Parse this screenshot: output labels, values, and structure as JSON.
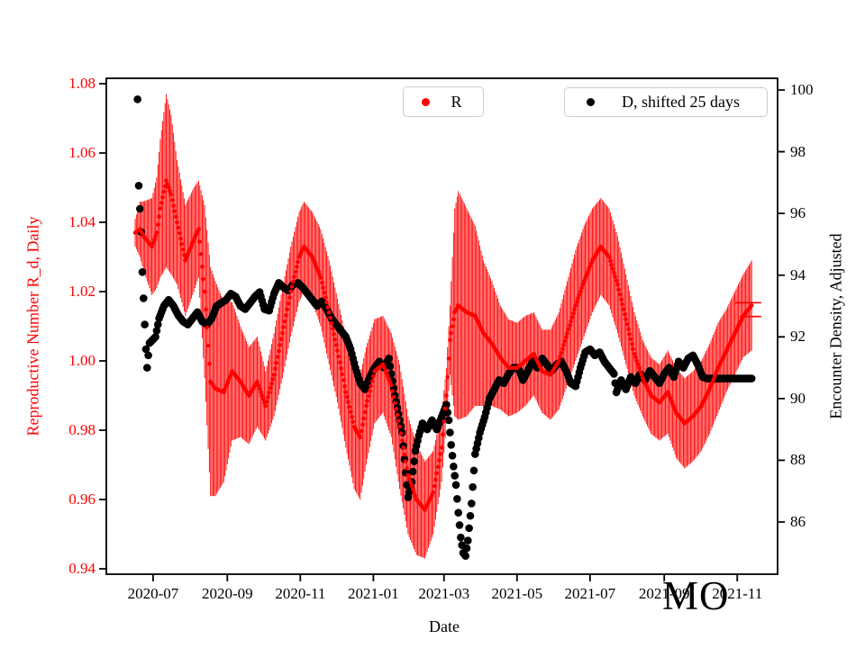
{
  "figure": {
    "watermark": "MO",
    "background": "#ffffff"
  },
  "axes": {
    "x": {
      "label": "Date",
      "color": "#000000",
      "tick_labels": [
        "2020-07",
        "2020-09",
        "2020-11",
        "2021-01",
        "2021-03",
        "2021-05",
        "2021-07",
        "2021-09",
        "2021-11"
      ],
      "tick_t": [
        15,
        77,
        138,
        199,
        258,
        319,
        380,
        442,
        503
      ]
    },
    "y_left": {
      "label": "Reproductive Number R_d, Daily",
      "color": "#ff0000",
      "tick_labels": [
        "1.08",
        "1.06",
        "1.04",
        "1.02",
        "1.00",
        "0.98",
        "0.96",
        "0.94"
      ],
      "tick_values": [
        1.08,
        1.06,
        1.04,
        1.02,
        1.0,
        0.98,
        0.96,
        0.94
      ]
    },
    "y_right": {
      "label": "Encounter Density, Adjusted",
      "color": "#000000",
      "tick_labels": [
        "100",
        "98",
        "96",
        "94",
        "92",
        "90",
        "88",
        "86"
      ],
      "tick_values": [
        100,
        98,
        96,
        94,
        92,
        90,
        88,
        86
      ]
    }
  },
  "legends": [
    {
      "label": "R",
      "marker": "point",
      "marker_color": "#ff0000"
    },
    {
      "label": "D, shifted 25 days",
      "marker": "point",
      "marker_color": "#000000"
    }
  ],
  "chart_data": {
    "type": "scatter",
    "title": "",
    "xlabel": "Date",
    "x_start_date": "2020-06-16",
    "x_unit": "days_since_start",
    "x_tick_labels": [
      "2020-07",
      "2020-09",
      "2020-11",
      "2021-01",
      "2021-03",
      "2021-05",
      "2021-07",
      "2021-09",
      "2021-11"
    ],
    "ylim_left": [
      0.938,
      1.082
    ],
    "ylim_right": [
      84.3,
      100.4
    ],
    "grid": false,
    "legend_position": "upper center",
    "series": [
      {
        "name": "R",
        "axis": "left",
        "color": "#ff0000",
        "marker": "point",
        "errorbars": true,
        "points_format": [
          "t_days",
          "value",
          "error_halfwidth"
        ],
        "points": [
          [
            0,
            1.037,
            0.004
          ],
          [
            4,
            1.038,
            0.008
          ],
          [
            7,
            1.036,
            0.01
          ],
          [
            14,
            1.033,
            0.014
          ],
          [
            18,
            1.037,
            0.016
          ],
          [
            21,
            1.044,
            0.02
          ],
          [
            26,
            1.052,
            0.025
          ],
          [
            30,
            1.048,
            0.023
          ],
          [
            35,
            1.04,
            0.018
          ],
          [
            42,
            1.029,
            0.016
          ],
          [
            49,
            1.035,
            0.015
          ],
          [
            53,
            1.038,
            0.014
          ],
          [
            58,
            1.02,
            0.025
          ],
          [
            63,
            0.994,
            0.033
          ],
          [
            67,
            0.992,
            0.031
          ],
          [
            74,
            0.991,
            0.026
          ],
          [
            81,
            0.997,
            0.02
          ],
          [
            88,
            0.994,
            0.016
          ],
          [
            95,
            0.99,
            0.014
          ],
          [
            102,
            0.994,
            0.013
          ],
          [
            109,
            0.987,
            0.01
          ],
          [
            116,
            0.996,
            0.012
          ],
          [
            123,
            1.008,
            0.013
          ],
          [
            130,
            1.02,
            0.013
          ],
          [
            137,
            1.03,
            0.013
          ],
          [
            141,
            1.033,
            0.013
          ],
          [
            148,
            1.03,
            0.013
          ],
          [
            155,
            1.024,
            0.014
          ],
          [
            162,
            1.014,
            0.015
          ],
          [
            169,
            1.003,
            0.015
          ],
          [
            176,
            0.991,
            0.016
          ],
          [
            183,
            0.981,
            0.018
          ],
          [
            188,
            0.978,
            0.018
          ],
          [
            193,
            0.987,
            0.017
          ],
          [
            200,
            0.997,
            0.015
          ],
          [
            207,
            0.999,
            0.014
          ],
          [
            214,
            0.993,
            0.015
          ],
          [
            221,
            0.981,
            0.018
          ],
          [
            228,
            0.967,
            0.017
          ],
          [
            235,
            0.96,
            0.016
          ],
          [
            242,
            0.957,
            0.014
          ],
          [
            249,
            0.962,
            0.012
          ],
          [
            256,
            0.975,
            0.01
          ],
          [
            260,
            0.99,
            0.008
          ],
          [
            263,
            1.006,
            0.01
          ],
          [
            267,
            1.014,
            0.03
          ],
          [
            270,
            1.016,
            0.033
          ],
          [
            277,
            1.014,
            0.03
          ],
          [
            284,
            1.013,
            0.026
          ],
          [
            291,
            1.008,
            0.021
          ],
          [
            298,
            1.005,
            0.018
          ],
          [
            305,
            1.001,
            0.015
          ],
          [
            312,
            0.998,
            0.014
          ],
          [
            319,
            0.998,
            0.013
          ],
          [
            326,
            1.0,
            0.013
          ],
          [
            333,
            1.002,
            0.012
          ],
          [
            340,
            0.997,
            0.012
          ],
          [
            347,
            0.996,
            0.013
          ],
          [
            354,
            1.0,
            0.014
          ],
          [
            361,
            1.008,
            0.015
          ],
          [
            368,
            1.016,
            0.016
          ],
          [
            375,
            1.023,
            0.016
          ],
          [
            382,
            1.029,
            0.015
          ],
          [
            389,
            1.033,
            0.014
          ],
          [
            396,
            1.03,
            0.014
          ],
          [
            403,
            1.022,
            0.014
          ],
          [
            410,
            1.012,
            0.013
          ],
          [
            417,
            1.002,
            0.012
          ],
          [
            424,
            0.995,
            0.011
          ],
          [
            431,
            0.99,
            0.011
          ],
          [
            438,
            0.988,
            0.011
          ],
          [
            445,
            0.991,
            0.012
          ],
          [
            452,
            0.985,
            0.013
          ],
          [
            459,
            0.982,
            0.013
          ],
          [
            466,
            0.984,
            0.013
          ],
          [
            473,
            0.987,
            0.013
          ],
          [
            480,
            0.992,
            0.013
          ],
          [
            487,
            0.998,
            0.013
          ],
          [
            494,
            1.003,
            0.012
          ],
          [
            501,
            1.008,
            0.012
          ],
          [
            508,
            1.013,
            0.012
          ],
          [
            515,
            1.016,
            0.013
          ]
        ],
        "end_caps": [
          {
            "t_center": 512,
            "value": 1.0168,
            "half_width_days": 11
          },
          {
            "t_center": 514,
            "value": 1.0128,
            "half_width_days": 9
          }
        ]
      },
      {
        "name": "D, shifted 25 days",
        "axis": "right",
        "color": "#000000",
        "marker": "point",
        "errorbars": false,
        "points_format": [
          "t_days",
          "value"
        ],
        "points": [
          [
            2,
            99.7
          ],
          [
            3,
            96.9
          ],
          [
            5,
            95.4
          ],
          [
            6,
            94.1
          ],
          [
            8,
            92.4
          ],
          [
            9,
            91.6
          ],
          [
            10,
            91.0
          ],
          [
            12,
            91.8
          ],
          [
            17,
            92.0
          ],
          [
            20,
            92.6
          ],
          [
            24,
            93.0
          ],
          [
            28,
            93.2
          ],
          [
            32,
            93.0
          ],
          [
            36,
            92.7
          ],
          [
            40,
            92.5
          ],
          [
            44,
            92.4
          ],
          [
            48,
            92.6
          ],
          [
            52,
            92.8
          ],
          [
            56,
            92.5
          ],
          [
            60,
            92.4
          ],
          [
            64,
            92.6
          ],
          [
            68,
            93.0
          ],
          [
            72,
            93.1
          ],
          [
            76,
            93.2
          ],
          [
            80,
            93.4
          ],
          [
            84,
            93.3
          ],
          [
            88,
            93.0
          ],
          [
            92,
            92.9
          ],
          [
            96,
            93.1
          ],
          [
            100,
            93.3
          ],
          [
            104,
            93.45
          ],
          [
            108,
            92.9
          ],
          [
            112,
            92.85
          ],
          [
            116,
            93.4
          ],
          [
            120,
            93.75
          ],
          [
            124,
            93.6
          ],
          [
            128,
            93.5
          ],
          [
            132,
            93.7
          ],
          [
            136,
            93.75
          ],
          [
            140,
            93.6
          ],
          [
            144,
            93.4
          ],
          [
            148,
            93.2
          ],
          [
            152,
            93.0
          ],
          [
            156,
            93.15
          ],
          [
            160,
            92.9
          ],
          [
            164,
            92.6
          ],
          [
            168,
            92.4
          ],
          [
            172,
            92.2
          ],
          [
            176,
            92.0
          ],
          [
            180,
            91.6
          ],
          [
            184,
            91.0
          ],
          [
            188,
            90.5
          ],
          [
            192,
            90.3
          ],
          [
            196,
            90.7
          ],
          [
            200,
            91.0
          ],
          [
            204,
            91.2
          ],
          [
            208,
            91.0
          ],
          [
            212,
            91.3
          ],
          [
            214,
            90.8
          ],
          [
            217,
            90.1
          ],
          [
            220,
            89.5
          ],
          [
            223,
            88.9
          ],
          [
            226,
            87.6
          ],
          [
            228,
            86.8
          ],
          [
            231,
            87.3
          ],
          [
            234,
            88.3
          ],
          [
            237,
            88.8
          ],
          [
            240,
            89.2
          ],
          [
            244,
            89.0
          ],
          [
            248,
            89.3
          ],
          [
            252,
            89.0
          ],
          [
            256,
            89.4
          ],
          [
            260,
            89.8
          ],
          [
            262,
            89.3
          ],
          [
            264,
            88.5
          ],
          [
            266,
            87.8
          ],
          [
            268,
            87.2
          ],
          [
            270,
            86.3
          ],
          [
            272,
            85.5
          ],
          [
            274,
            85.0
          ],
          [
            276,
            84.9
          ],
          [
            278,
            85.4
          ],
          [
            281,
            86.6
          ],
          [
            284,
            88.2
          ],
          [
            288,
            88.9
          ],
          [
            292,
            89.4
          ],
          [
            296,
            90.0
          ],
          [
            300,
            90.3
          ],
          [
            304,
            90.6
          ],
          [
            308,
            90.5
          ],
          [
            312,
            90.8
          ],
          [
            316,
            91.0
          ],
          [
            320,
            91.0
          ],
          [
            324,
            90.6
          ],
          [
            328,
            90.9
          ],
          [
            332,
            91.2
          ],
          [
            336,
            91.0
          ],
          [
            340,
            91.3
          ],
          [
            344,
            91.1
          ],
          [
            348,
            90.9
          ],
          [
            352,
            91.1
          ],
          [
            356,
            91.2
          ],
          [
            360,
            90.9
          ],
          [
            364,
            90.5
          ],
          [
            368,
            90.4
          ],
          [
            372,
            91.0
          ],
          [
            376,
            91.5
          ],
          [
            380,
            91.6
          ],
          [
            384,
            91.4
          ],
          [
            388,
            91.5
          ],
          [
            392,
            91.2
          ],
          [
            396,
            91.0
          ],
          [
            400,
            90.8
          ],
          [
            402,
            90.2
          ],
          [
            406,
            90.6
          ],
          [
            410,
            90.3
          ],
          [
            414,
            90.7
          ],
          [
            418,
            90.5
          ],
          [
            422,
            90.8
          ],
          [
            426,
            90.6
          ],
          [
            430,
            90.9
          ],
          [
            434,
            90.7
          ],
          [
            438,
            90.5
          ],
          [
            442,
            90.8
          ],
          [
            446,
            91.0
          ],
          [
            450,
            90.7
          ],
          [
            454,
            91.2
          ],
          [
            458,
            91.0
          ],
          [
            462,
            91.3
          ],
          [
            466,
            91.4
          ],
          [
            470,
            91.1
          ],
          [
            474,
            90.7
          ],
          [
            478,
            90.65
          ],
          [
            515,
            90.65
          ]
        ]
      }
    ]
  }
}
